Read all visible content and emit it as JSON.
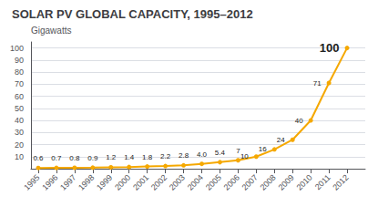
{
  "chart_data": {
    "type": "line",
    "title": "SOLAR PV GLOBAL CAPACITY, 1995–2012",
    "ylabel": "Gigawatts",
    "x": [
      1995,
      1996,
      1997,
      1998,
      1999,
      2000,
      2001,
      2002,
      2003,
      2004,
      2005,
      2006,
      2007,
      2008,
      2009,
      2010,
      2011,
      2012
    ],
    "values": [
      0.6,
      0.7,
      0.8,
      0.9,
      1.2,
      1.4,
      1.8,
      2.2,
      2.8,
      4.0,
      5.4,
      7,
      10,
      16,
      24,
      40,
      71,
      100
    ],
    "value_labels": [
      "0.6",
      "0.7",
      "0.8",
      "0.9",
      "1.2",
      "1.4",
      "1.8",
      "2.2",
      "2.8",
      "4.0",
      "5.4",
      "7",
      "10",
      "16",
      "24",
      "40",
      "71",
      "100"
    ],
    "data_labels": true,
    "color": "#F5A800",
    "marker": "circle",
    "xlim": [
      1994.6,
      2013.0
    ],
    "xticks": [
      1995,
      1996,
      1997,
      1998,
      1999,
      2000,
      2001,
      2002,
      2003,
      2004,
      2005,
      2006,
      2007,
      2008,
      2009,
      2010,
      2011,
      2012
    ],
    "ylim": [
      0,
      105
    ],
    "yticks": [
      10,
      20,
      30,
      40,
      50,
      60,
      70,
      80,
      90,
      100
    ],
    "grid": true
  }
}
